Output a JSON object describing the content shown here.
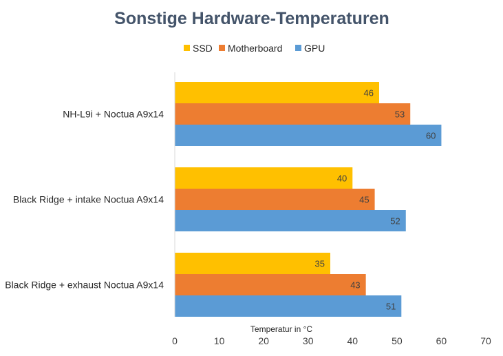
{
  "chart_data": {
    "type": "bar",
    "orientation": "horizontal",
    "title": "Sonstige Hardware-Temperaturen",
    "xlabel": "Temperatur in °C",
    "ylabel": "",
    "xlim": [
      0,
      70
    ],
    "ticks": [
      "0",
      "10",
      "20",
      "30",
      "40",
      "50",
      "60",
      "70"
    ],
    "tick_values": [
      0,
      10,
      20,
      30,
      40,
      50,
      60,
      70
    ],
    "grid": false,
    "legend_position": "top",
    "categories": [
      "NH-L9i + Noctua A9x14",
      "Black Ridge + intake Noctua A9x14",
      "Black Ridge + exhaust Noctua A9x14"
    ],
    "series": [
      {
        "name": "SSD",
        "color": "#ffc000",
        "values": [
          46,
          40,
          35
        ]
      },
      {
        "name": "Motherboard",
        "color": "#ed7d31",
        "values": [
          53,
          45,
          43
        ]
      },
      {
        "name": "GPU",
        "color": "#5b9bd5",
        "values": [
          60,
          52,
          51
        ]
      }
    ],
    "data_labels": true
  }
}
